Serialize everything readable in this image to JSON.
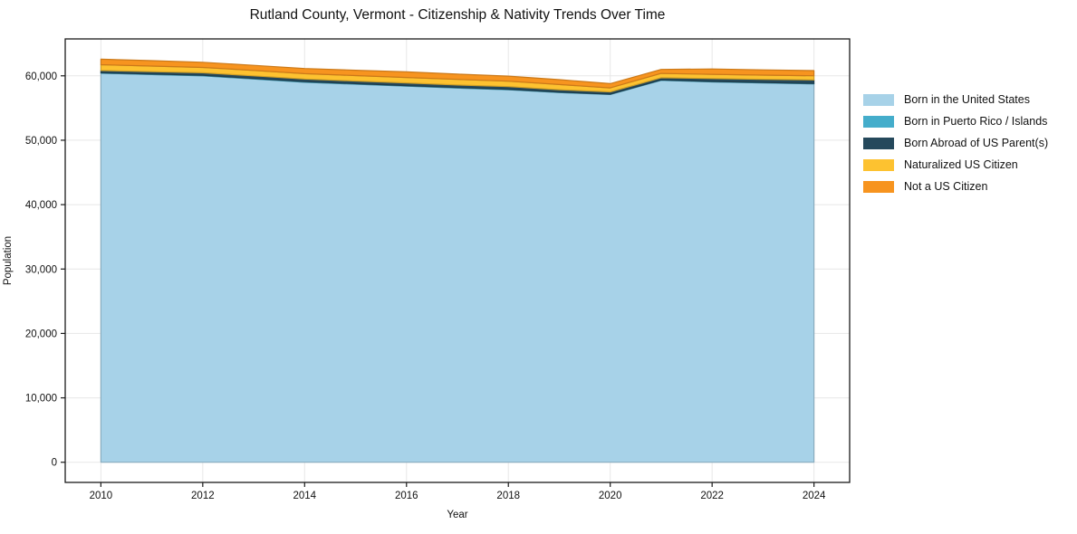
{
  "chart_data": {
    "type": "area",
    "stacked": true,
    "title": "Rutland County, Vermont - Citizenship & Nativity Trends Over Time",
    "xlabel": "Year",
    "ylabel": "Population",
    "x": [
      2010,
      2011,
      2012,
      2013,
      2014,
      2015,
      2016,
      2017,
      2018,
      2019,
      2020,
      2021,
      2022,
      2023,
      2024
    ],
    "series": [
      {
        "name": "Born in the United States",
        "color": "#a7d2e8",
        "values": [
          60400,
          60200,
          60000,
          59500,
          59000,
          58700,
          58400,
          58100,
          57850,
          57400,
          57100,
          59300,
          59050,
          58900,
          58750
        ]
      },
      {
        "name": "Born in Puerto Rico / Islands",
        "color": "#44adcb",
        "values": [
          80,
          80,
          80,
          90,
          90,
          90,
          80,
          80,
          70,
          70,
          60,
          70,
          70,
          60,
          60
        ]
      },
      {
        "name": "Born Abroad of US Parent(s)",
        "color": "#25495c",
        "values": [
          350,
          360,
          400,
          400,
          420,
          400,
          420,
          400,
          400,
          380,
          350,
          330,
          450,
          500,
          550
        ]
      },
      {
        "name": "Naturalized US Citizen",
        "color": "#fdc230",
        "values": [
          900,
          880,
          820,
          850,
          830,
          850,
          850,
          870,
          850,
          800,
          620,
          680,
          660,
          650,
          650
        ]
      },
      {
        "name": "Not a US Citizen",
        "color": "#f7941f",
        "values": [
          850,
          840,
          800,
          780,
          800,
          830,
          870,
          820,
          790,
          750,
          660,
          620,
          840,
          820,
          800
        ]
      }
    ],
    "xticks": [
      2010,
      2012,
      2014,
      2016,
      2018,
      2020,
      2022,
      2024
    ],
    "xtick_labels": [
      "2010",
      "2012",
      "2014",
      "2016",
      "2018",
      "2020",
      "2022",
      "2024"
    ],
    "yticks": [
      0,
      10000,
      20000,
      30000,
      40000,
      50000,
      60000
    ],
    "ytick_labels": [
      "0",
      "10,000",
      "20,000",
      "30,000",
      "40,000",
      "50,000",
      "60,000"
    ],
    "xlim": [
      2009.3,
      2024.7
    ],
    "ylim": [
      -3130,
      65730
    ],
    "grid": true,
    "grid_color": "#e7e7e7",
    "spine_color": "#1a1a1a",
    "legend_position": "right-outside"
  }
}
